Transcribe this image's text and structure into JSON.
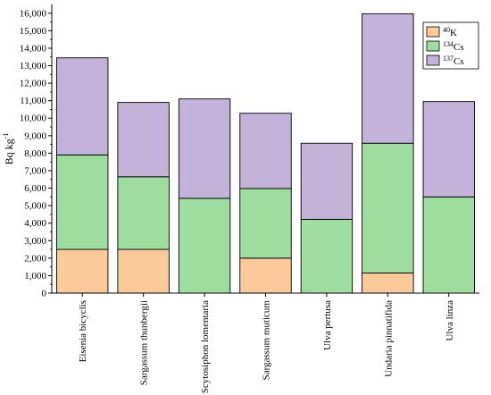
{
  "chart_data": {
    "type": "bar",
    "stacked": true,
    "categories": [
      "Eisenia bicyclis",
      "Sargassum thunbergii",
      "Scytosiphon lomentaria",
      "Sargassum muticum",
      "Ulva pertusa",
      "Undaria pinnatifida",
      "Ulva linza"
    ],
    "series": [
      {
        "name": "40K",
        "name_sup": "40",
        "name_base": "K",
        "color": "#fcc99b",
        "values": [
          2500,
          2500,
          0,
          2000,
          0,
          1150,
          0
        ]
      },
      {
        "name": "134Cs",
        "name_sup": "134",
        "name_base": "Cs",
        "color": "#9fdc9f",
        "values": [
          5400,
          4150,
          5420,
          3980,
          4220,
          7420,
          5500
        ]
      },
      {
        "name": "137Cs",
        "name_sup": "137",
        "name_base": "Cs",
        "color": "#c3b3d9",
        "values": [
          5550,
          4250,
          5680,
          4300,
          4350,
          7400,
          5450
        ]
      }
    ],
    "title": "",
    "xlabel": "",
    "ylabel": "Bq kg-1",
    "ylabel_base": "Bq kg",
    "ylabel_sup": "-1",
    "ylim": [
      0,
      16500
    ],
    "yticks": [
      0,
      1000,
      2000,
      3000,
      4000,
      5000,
      6000,
      7000,
      8000,
      9000,
      10000,
      11000,
      12000,
      13000,
      14000,
      15000,
      16000
    ],
    "ytick_labels": [
      "0",
      "1,000",
      "2,000",
      "3,000",
      "4,000",
      "5,000",
      "6,000",
      "7,000",
      "8,000",
      "9,000",
      "10,000",
      "11,000",
      "12,000",
      "13,000",
      "14,000",
      "15,000",
      "16,000"
    ],
    "grid": false,
    "legend": "top-right"
  }
}
